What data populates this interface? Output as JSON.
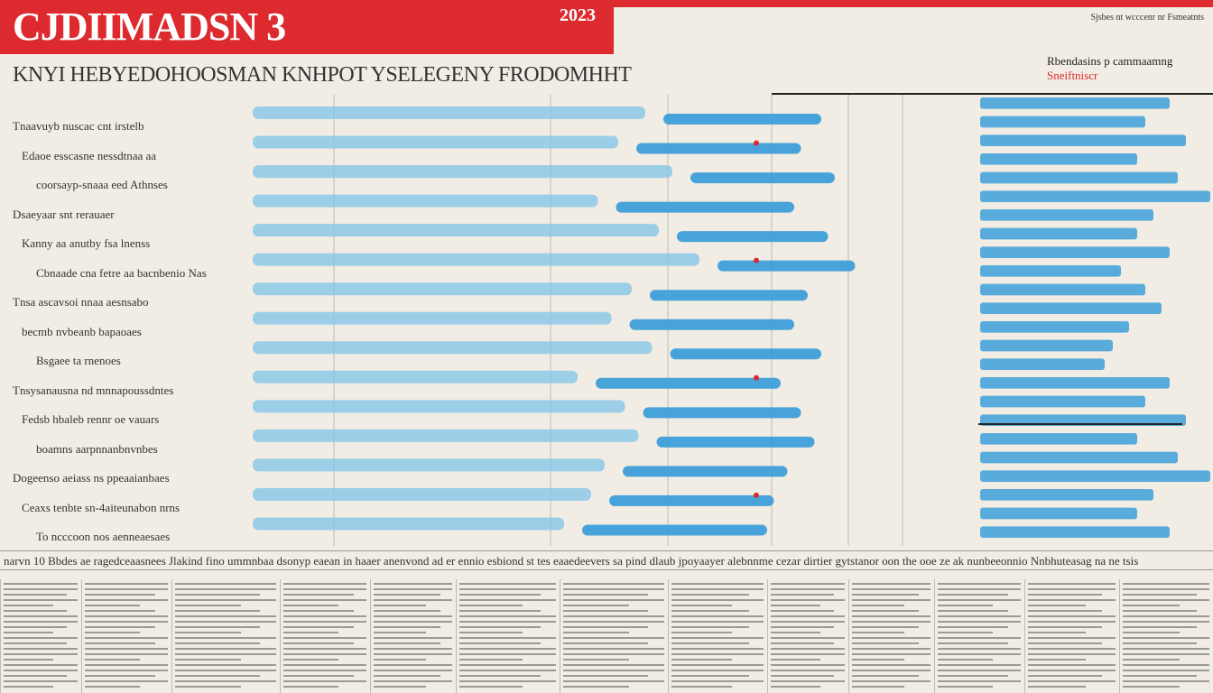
{
  "header": {
    "title": "CJDIIMADSN 3",
    "year": "2023",
    "subtitle": "KNYI HEBYEDOHOOSMAN KNHPOT YSELEGENY FRODOMHHT",
    "top_tag": "Sjsbes nt wcccenr nr Fsmeatnts"
  },
  "legend": {
    "title_main": "Rbendasins p cammaamng",
    "title_accent": "Sneiftniscr"
  },
  "row_labels": [
    "Tnaavuyb nuscac cnt irstelb",
    "Edaoe esscasne nessdtnaa aa",
    "coorsayp-snaaa eed Athnses",
    "Dsaeyaar snt rerauaer",
    "Kanny aa anutby fsa lnenss",
    "Cbnaade cna fetre aa bacnbenio Nas",
    "Tnsa ascavsoi nnaa aesnsabo",
    "becmb nvbeanb bapaoaes",
    "Bsgaee ta rnenoes",
    "Tnsysanausna nd mnnapoussdntes",
    "Fedsb hbaleb rennr oe vauars",
    "boamns aarpnnanbnvnbes",
    "Dogeenso aeiass ns ppeaaianbaes",
    "Ceaxs tenbte sn-4aiteunabon nrns",
    "To ncccoon nos aenneaesaes"
  ],
  "footer": {
    "headline": "narvn 10 Bbdes ae ragedceaasnees Jlakind fino ummnbaa dsonyp eaean in haaer anenvond ad er ennio esbiond st tes eaaedeevers sa pind dlaub jpoyaayer alebnnme cezar dirtier gytstanor oon the ooe ze ak nunbeeonnio Nnbhuteasag na ne tsis"
  },
  "chart_data": {
    "type": "bar",
    "title": "CJDIIMADSN 3",
    "subtitle": "KNYI HEBYEDOHOOSMAN KNHPOT YSELEGENY FRODOMHHT",
    "year": "2023",
    "xlabel": "",
    "ylabel": "",
    "orientation": "horizontal",
    "categories": [
      "Tnaavuyb nuscac cnt irstelb",
      "Edaoe esscasne nessdtnaa aa",
      "coorsayp-snaaa eed Athnses",
      "Dsaeyaar snt rerauaer",
      "Kanny aa anutby fsa lnenss",
      "Cbnaade cna fetre aa bacnbenio Nas",
      "Tnsa ascavsoi nnaa aesnsabo",
      "becmb nvbeanb bapaoaes",
      "Bsgaee ta rnenoes",
      "Tnsysanausna nd mnnapoussdntes",
      "Fedsb hbaleb rennr oe vauars",
      "boamns aarpnnanbnvnbes",
      "Dogeenso aeiass ns ppeaaianbaes",
      "Ceaxs tenbte sn-4aiteunabon nrns",
      "To ncccoon nos aenneaesaes"
    ],
    "series": [
      {
        "values": [
          62,
          58,
          66,
          55,
          64,
          70,
          60,
          57,
          63,
          52,
          59,
          61,
          56,
          54,
          50
        ]
      },
      {
        "values": [
          88,
          85,
          90,
          84,
          89,
          93,
          86,
          84,
          88,
          82,
          85,
          87,
          83,
          81,
          80
        ]
      }
    ],
    "xlim": [
      0,
      100
    ],
    "grid": true,
    "legend_position": "right",
    "colors": {
      "bar": "#3d9fd8",
      "bar_light": "#7fc3ea",
      "accent": "#dc2a2e",
      "grid": "#888888"
    }
  }
}
